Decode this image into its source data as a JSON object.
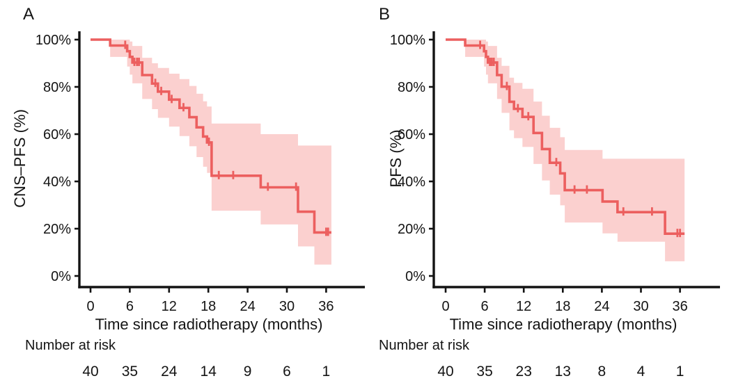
{
  "colors": {
    "curve": "#ec5f5f",
    "band": "#fbd0cf",
    "axis": "#131313",
    "text": "#141414",
    "background": "#ffffff"
  },
  "chart_data": [
    {
      "type": "line",
      "subtype": "kaplan_meier_step_with_ci_band",
      "panel_letter": "A",
      "ylabel": "CNS–PFS (%)",
      "xlabel": "Time since radiotherapy (months)",
      "xlim": [
        0,
        42
      ],
      "ylim": [
        0,
        100
      ],
      "grid": false,
      "legend": false,
      "xticks": [
        0,
        6,
        12,
        18,
        24,
        30,
        36
      ],
      "ytick_labels": [
        "0%",
        "20%",
        "40%",
        "60%",
        "80%",
        "100%"
      ],
      "end_time": 36.8,
      "steps_format": "[time_months, survival_pct, ci_lower_pct, ci_upper_pct]",
      "steps": [
        [
          0,
          100,
          100,
          100
        ],
        [
          3.0,
          97.5,
          92.7,
          100
        ],
        [
          5.6,
          95.1,
          88.6,
          100
        ],
        [
          6.0,
          92.7,
          85.2,
          99.2
        ],
        [
          6.4,
          90.3,
          81.5,
          97.3
        ],
        [
          7.9,
          85.0,
          74.9,
          92.3
        ],
        [
          9.4,
          81.4,
          70.6,
          90.0
        ],
        [
          10.3,
          78.0,
          66.9,
          88.0
        ],
        [
          12.0,
          74.6,
          63.2,
          85.6
        ],
        [
          13.6,
          71.1,
          59.2,
          83.3
        ],
        [
          15.1,
          67.2,
          54.9,
          80.4
        ],
        [
          16.2,
          62.9,
          50.3,
          77.1
        ],
        [
          17.2,
          59.0,
          46.2,
          73.9
        ],
        [
          17.8,
          56.5,
          43.6,
          71.7
        ],
        [
          18.5,
          42.4,
          27.6,
          64.5
        ],
        [
          26.0,
          37.5,
          21.8,
          60.0
        ],
        [
          31.7,
          27.2,
          12.5,
          55.2
        ],
        [
          34.2,
          18.4,
          4.8,
          55.2
        ]
      ],
      "censor_marks": [
        [
          5.3,
          97.5
        ],
        [
          6.7,
          90.3
        ],
        [
          7.1,
          90.3
        ],
        [
          7.4,
          90.3
        ],
        [
          9.9,
          81.4
        ],
        [
          10.8,
          78.0
        ],
        [
          12.4,
          74.6
        ],
        [
          14.2,
          71.1
        ],
        [
          18.1,
          56.5
        ],
        [
          19.6,
          42.4
        ],
        [
          21.8,
          42.4
        ],
        [
          27.1,
          37.5
        ],
        [
          31.4,
          37.5
        ],
        [
          36.0,
          18.4
        ],
        [
          36.3,
          18.4
        ]
      ],
      "number_at_risk": {
        "label": "Number at risk",
        "times": [
          0,
          6,
          12,
          18,
          24,
          30,
          36
        ],
        "values": [
          40,
          35,
          24,
          14,
          9,
          6,
          1
        ]
      }
    },
    {
      "type": "line",
      "subtype": "kaplan_meier_step_with_ci_band",
      "panel_letter": "B",
      "ylabel": "PFS (%)",
      "xlabel": "Time since radiotherapy (months)",
      "xlim": [
        0,
        42
      ],
      "ylim": [
        0,
        100
      ],
      "grid": false,
      "legend": false,
      "xticks": [
        0,
        6,
        12,
        18,
        24,
        30,
        36
      ],
      "ytick_labels": [
        "0%",
        "20%",
        "40%",
        "60%",
        "80%",
        "100%"
      ],
      "end_time": 36.7,
      "steps_format": "[time_months, survival_pct, ci_lower_pct, ci_upper_pct]",
      "steps": [
        [
          0,
          100,
          100,
          100
        ],
        [
          3.0,
          97.5,
          92.7,
          100
        ],
        [
          5.9,
          95.1,
          88.6,
          100
        ],
        [
          6.2,
          92.7,
          85.2,
          99.2
        ],
        [
          6.5,
          90.3,
          81.5,
          97.3
        ],
        [
          7.9,
          85.0,
          74.9,
          92.3
        ],
        [
          8.6,
          80.1,
          69.0,
          88.9
        ],
        [
          9.8,
          73.7,
          61.6,
          83.9
        ],
        [
          10.5,
          70.7,
          58.3,
          81.7
        ],
        [
          11.8,
          67.3,
          54.6,
          79.2
        ],
        [
          13.5,
          60.5,
          47.4,
          73.8
        ],
        [
          14.8,
          53.7,
          40.4,
          67.8
        ],
        [
          16.0,
          47.9,
          34.4,
          62.7
        ],
        [
          17.6,
          43.4,
          29.9,
          58.7
        ],
        [
          18.3,
          36.3,
          22.6,
          53.3
        ],
        [
          24.1,
          31.5,
          18.0,
          49.6
        ],
        [
          26.4,
          27.0,
          14.5,
          49.6
        ],
        [
          33.7,
          17.9,
          6.2,
          49.6
        ]
      ],
      "censor_marks": [
        [
          5.3,
          97.5
        ],
        [
          6.8,
          90.3
        ],
        [
          7.1,
          90.3
        ],
        [
          7.4,
          90.3
        ],
        [
          9.4,
          80.1
        ],
        [
          11.1,
          70.7
        ],
        [
          12.7,
          67.3
        ],
        [
          17.0,
          47.9
        ],
        [
          19.8,
          36.3
        ],
        [
          21.7,
          36.3
        ],
        [
          27.3,
          27.0
        ],
        [
          31.7,
          27.0
        ],
        [
          35.6,
          17.9
        ],
        [
          36.0,
          17.9
        ]
      ],
      "number_at_risk": {
        "label": "Number at risk",
        "times": [
          0,
          6,
          12,
          18,
          24,
          30,
          36
        ],
        "values": [
          40,
          35,
          23,
          13,
          8,
          4,
          1
        ]
      }
    }
  ]
}
